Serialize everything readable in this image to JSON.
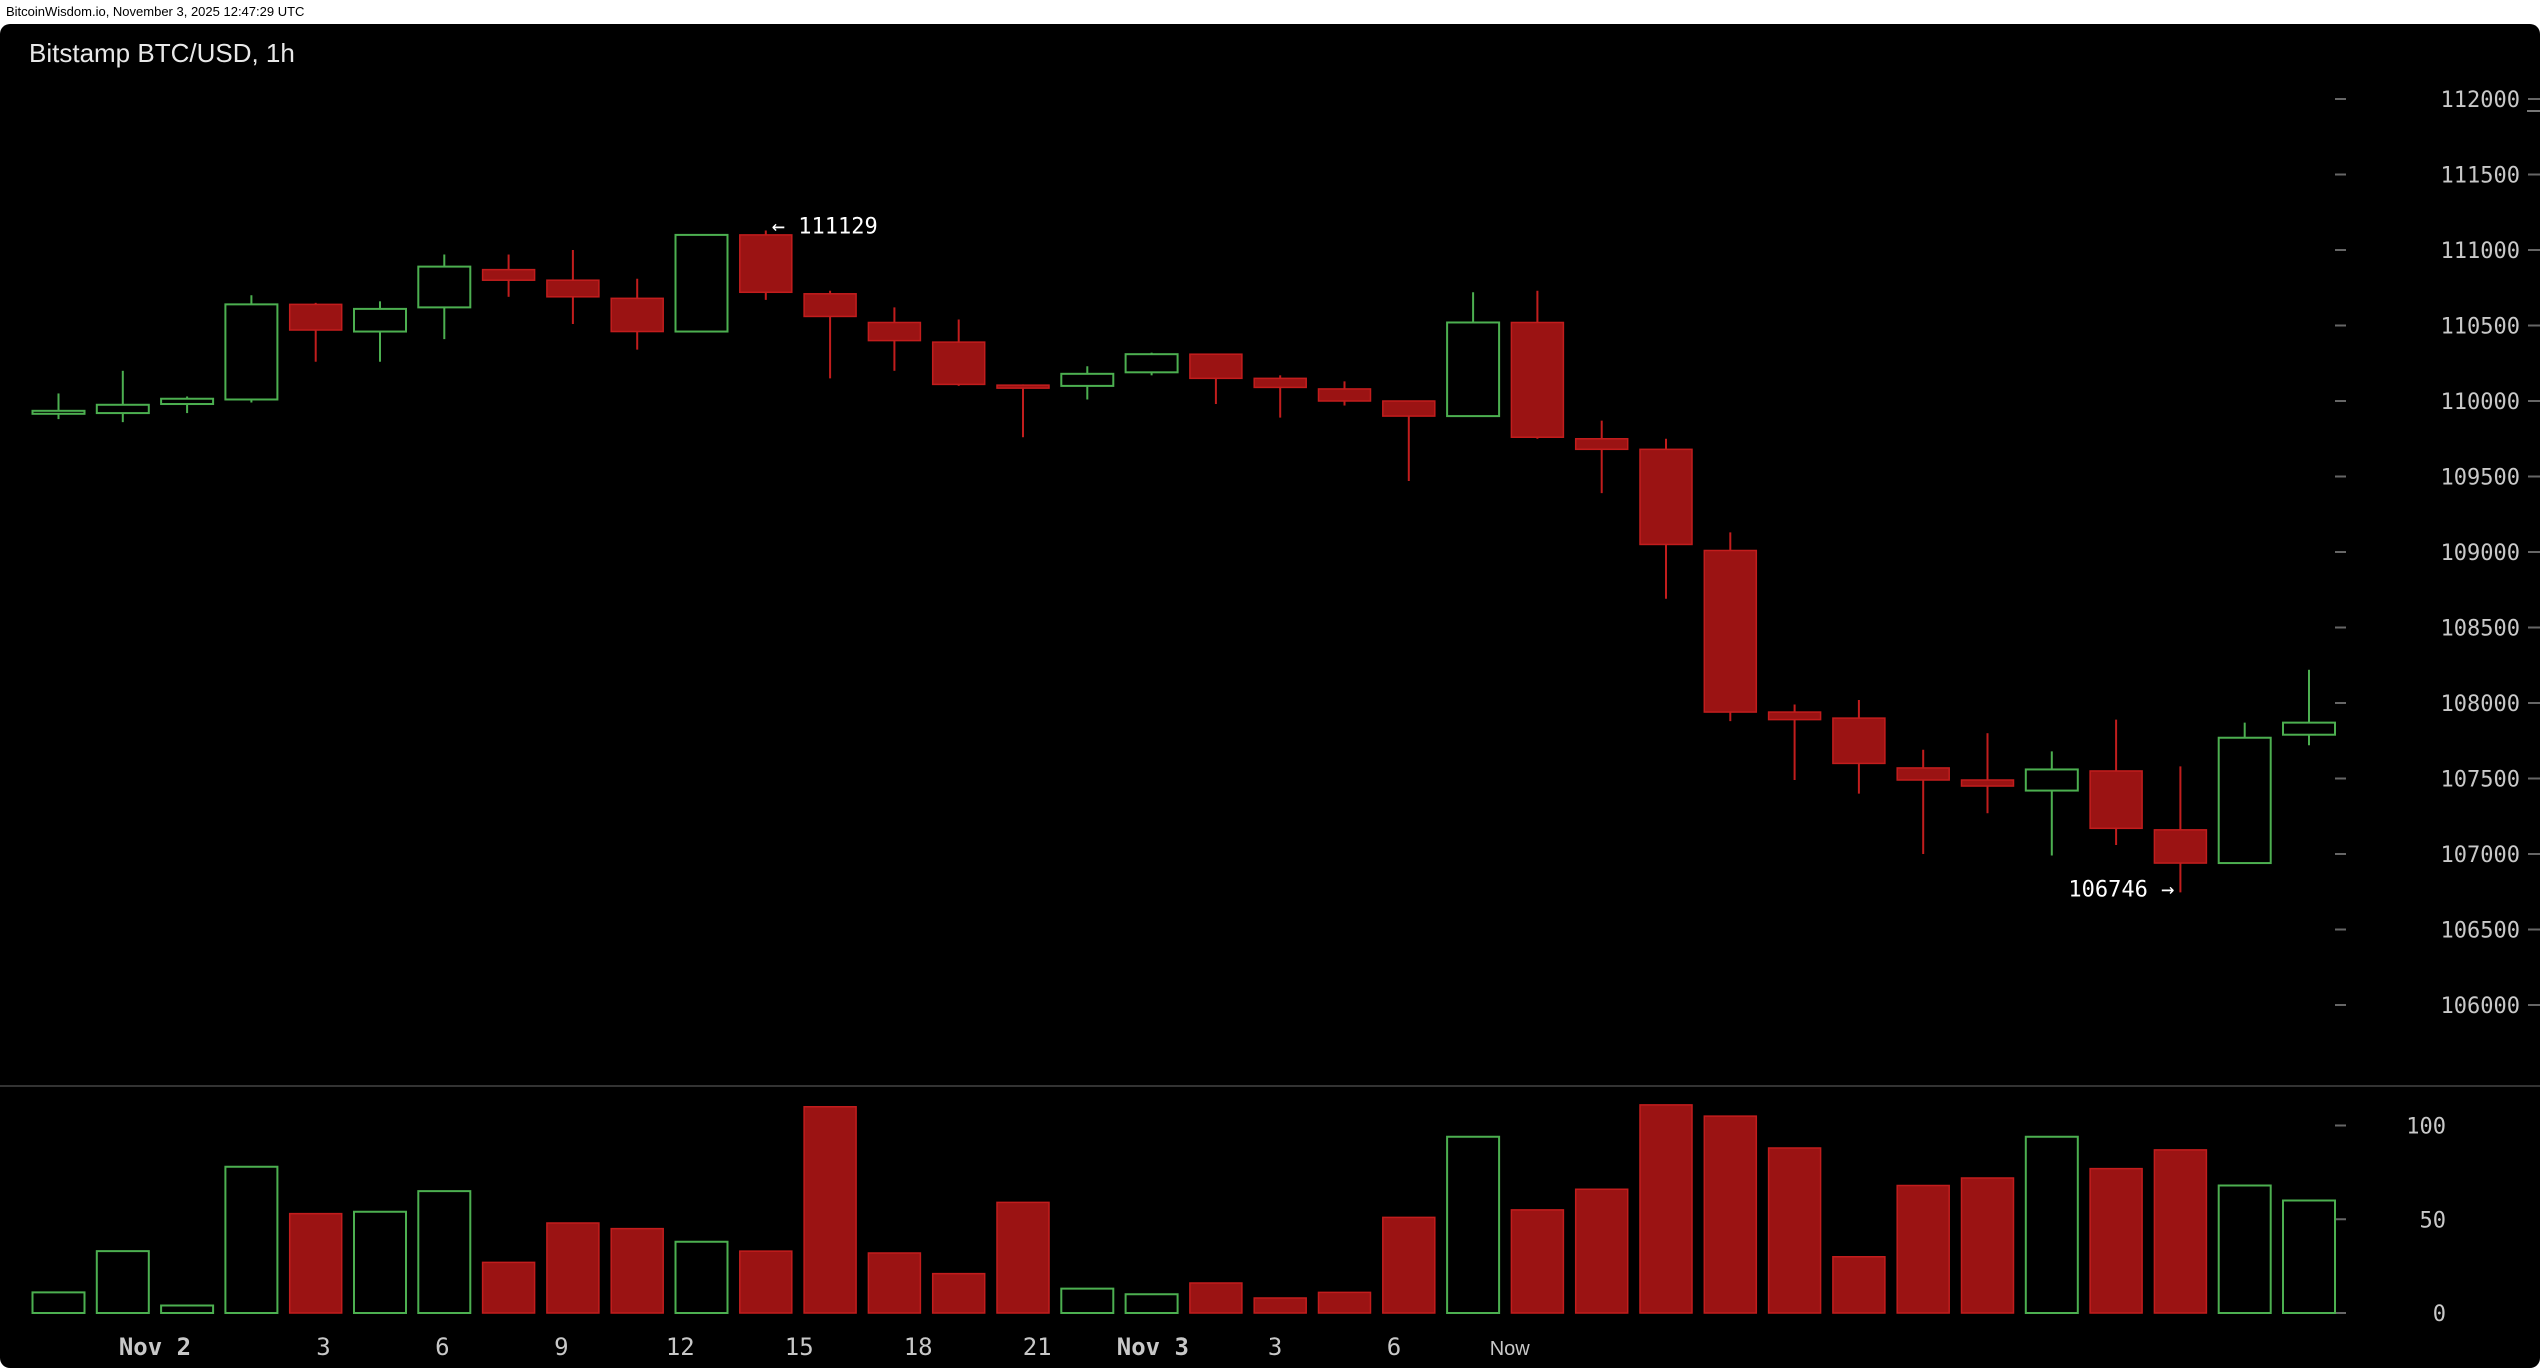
{
  "header": {
    "source_line": "BitcoinWisdom.io, November 3, 2025 12:47:29 UTC"
  },
  "chart_data": {
    "type": "candlestick",
    "title": "Bitstamp BTC/USD, 1h",
    "colors": {
      "up": "#4caf50",
      "down": "#9b1313",
      "down_outline": "#c21d1d",
      "background": "#000000",
      "axis_text": "#c8c8c8"
    },
    "price_axis": {
      "ticks": [
        112000,
        111500,
        111000,
        110500,
        110000,
        109500,
        109000,
        108500,
        108000,
        107500,
        107000,
        106500,
        106000
      ]
    },
    "volume_axis": {
      "ticks": [
        100,
        50,
        0
      ]
    },
    "x_tick_labels": [
      "Nov 2",
      "3",
      "6",
      "9",
      "12",
      "15",
      "18",
      "21",
      "Nov 3",
      "3",
      "6",
      "Now"
    ],
    "annotations": {
      "high": {
        "value": 111129,
        "label": "← 111129",
        "candle_index": 11
      },
      "low": {
        "value": 106746,
        "label": "106746 →",
        "candle_index": 33
      }
    },
    "candles": [
      {
        "o": 109930,
        "h": 110050,
        "l": 109880,
        "c": 109935,
        "v": 11
      },
      {
        "o": 109920,
        "h": 110200,
        "l": 109860,
        "c": 109975,
        "v": 33
      },
      {
        "o": 109980,
        "h": 110030,
        "l": 109920,
        "c": 110015,
        "v": 4
      },
      {
        "o": 110010,
        "h": 110700,
        "l": 109990,
        "c": 110640,
        "v": 78
      },
      {
        "o": 110640,
        "h": 110650,
        "l": 110260,
        "c": 110470,
        "v": 53
      },
      {
        "o": 110460,
        "h": 110660,
        "l": 110260,
        "c": 110610,
        "v": 54
      },
      {
        "o": 110620,
        "h": 110970,
        "l": 110410,
        "c": 110890,
        "v": 65
      },
      {
        "o": 110870,
        "h": 110970,
        "l": 110690,
        "c": 110800,
        "v": 27
      },
      {
        "o": 110800,
        "h": 111000,
        "l": 110510,
        "c": 110690,
        "v": 48
      },
      {
        "o": 110680,
        "h": 110810,
        "l": 110340,
        "c": 110460,
        "v": 45
      },
      {
        "o": 110460,
        "h": 111100,
        "l": 110460,
        "c": 111100,
        "v": 38
      },
      {
        "o": 111100,
        "h": 111129,
        "l": 110670,
        "c": 110720,
        "v": 33
      },
      {
        "o": 110710,
        "h": 110730,
        "l": 110150,
        "c": 110560,
        "v": 110
      },
      {
        "o": 110520,
        "h": 110620,
        "l": 110200,
        "c": 110400,
        "v": 32
      },
      {
        "o": 110390,
        "h": 110540,
        "l": 110100,
        "c": 110110,
        "v": 21
      },
      {
        "o": 110105,
        "h": 110110,
        "l": 109760,
        "c": 110100,
        "v": 59
      },
      {
        "o": 110100,
        "h": 110230,
        "l": 110010,
        "c": 110180,
        "v": 13
      },
      {
        "o": 110190,
        "h": 110320,
        "l": 110170,
        "c": 110310,
        "v": 10
      },
      {
        "o": 110310,
        "h": 110310,
        "l": 109980,
        "c": 110150,
        "v": 16
      },
      {
        "o": 110150,
        "h": 110170,
        "l": 109890,
        "c": 110090,
        "v": 8
      },
      {
        "o": 110080,
        "h": 110130,
        "l": 109970,
        "c": 110000,
        "v": 11
      },
      {
        "o": 110000,
        "h": 110000,
        "l": 109470,
        "c": 109900,
        "v": 51
      },
      {
        "o": 109900,
        "h": 110720,
        "l": 109900,
        "c": 110520,
        "v": 94
      },
      {
        "o": 110520,
        "h": 110730,
        "l": 109750,
        "c": 109760,
        "v": 55
      },
      {
        "o": 109750,
        "h": 109870,
        "l": 109390,
        "c": 109680,
        "v": 66
      },
      {
        "o": 109680,
        "h": 109750,
        "l": 108690,
        "c": 109050,
        "v": 111
      },
      {
        "o": 109010,
        "h": 109130,
        "l": 107880,
        "c": 107940,
        "v": 105
      },
      {
        "o": 107940,
        "h": 107990,
        "l": 107490,
        "c": 107890,
        "v": 88
      },
      {
        "o": 107900,
        "h": 108020,
        "l": 107400,
        "c": 107600,
        "v": 30
      },
      {
        "o": 107570,
        "h": 107690,
        "l": 107000,
        "c": 107490,
        "v": 68
      },
      {
        "o": 107490,
        "h": 107800,
        "l": 107270,
        "c": 107450,
        "v": 72
      },
      {
        "o": 107420,
        "h": 107680,
        "l": 106990,
        "c": 107560,
        "v": 94
      },
      {
        "o": 107550,
        "h": 107890,
        "l": 107060,
        "c": 107170,
        "v": 77
      },
      {
        "o": 107160,
        "h": 107580,
        "l": 106746,
        "c": 106940,
        "v": 87
      },
      {
        "o": 106940,
        "h": 107870,
        "l": 106940,
        "c": 107770,
        "v": 68
      },
      {
        "o": 107790,
        "h": 108220,
        "l": 107720,
        "c": 107870,
        "v": 60
      }
    ]
  }
}
